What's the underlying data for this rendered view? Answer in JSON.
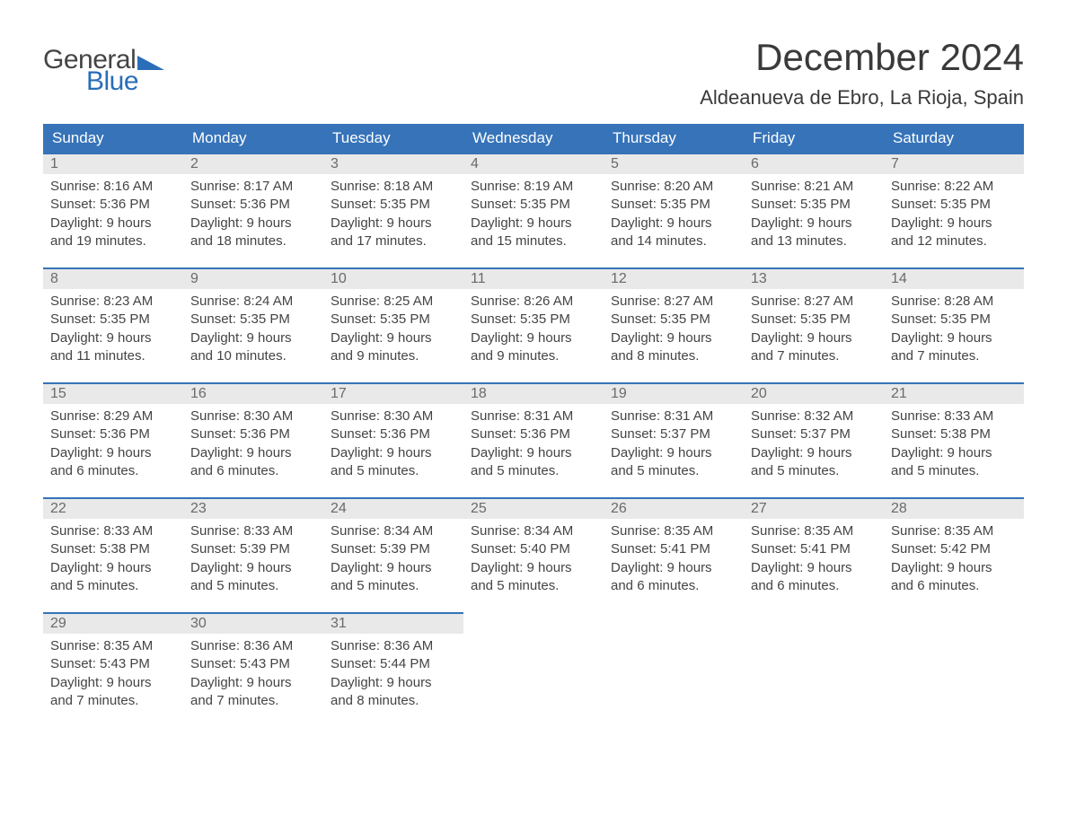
{
  "logo": {
    "word1": "General",
    "word2": "Blue",
    "text_color": "#444444",
    "accent_color": "#2a6db8"
  },
  "title": "December 2024",
  "location": "Aldeanueva de Ebro, La Rioja, Spain",
  "colors": {
    "header_bg": "#3673b9",
    "header_text": "#ffffff",
    "daynum_bg": "#e9e9e9",
    "daynum_border": "#3673b9",
    "body_text": "#444444",
    "page_bg": "#ffffff"
  },
  "weekdays": [
    "Sunday",
    "Monday",
    "Tuesday",
    "Wednesday",
    "Thursday",
    "Friday",
    "Saturday"
  ],
  "days": [
    {
      "n": 1,
      "sunrise": "Sunrise: 8:16 AM",
      "sunset": "Sunset: 5:36 PM",
      "d1": "Daylight: 9 hours",
      "d2": "and 19 minutes."
    },
    {
      "n": 2,
      "sunrise": "Sunrise: 8:17 AM",
      "sunset": "Sunset: 5:36 PM",
      "d1": "Daylight: 9 hours",
      "d2": "and 18 minutes."
    },
    {
      "n": 3,
      "sunrise": "Sunrise: 8:18 AM",
      "sunset": "Sunset: 5:35 PM",
      "d1": "Daylight: 9 hours",
      "d2": "and 17 minutes."
    },
    {
      "n": 4,
      "sunrise": "Sunrise: 8:19 AM",
      "sunset": "Sunset: 5:35 PM",
      "d1": "Daylight: 9 hours",
      "d2": "and 15 minutes."
    },
    {
      "n": 5,
      "sunrise": "Sunrise: 8:20 AM",
      "sunset": "Sunset: 5:35 PM",
      "d1": "Daylight: 9 hours",
      "d2": "and 14 minutes."
    },
    {
      "n": 6,
      "sunrise": "Sunrise: 8:21 AM",
      "sunset": "Sunset: 5:35 PM",
      "d1": "Daylight: 9 hours",
      "d2": "and 13 minutes."
    },
    {
      "n": 7,
      "sunrise": "Sunrise: 8:22 AM",
      "sunset": "Sunset: 5:35 PM",
      "d1": "Daylight: 9 hours",
      "d2": "and 12 minutes."
    },
    {
      "n": 8,
      "sunrise": "Sunrise: 8:23 AM",
      "sunset": "Sunset: 5:35 PM",
      "d1": "Daylight: 9 hours",
      "d2": "and 11 minutes."
    },
    {
      "n": 9,
      "sunrise": "Sunrise: 8:24 AM",
      "sunset": "Sunset: 5:35 PM",
      "d1": "Daylight: 9 hours",
      "d2": "and 10 minutes."
    },
    {
      "n": 10,
      "sunrise": "Sunrise: 8:25 AM",
      "sunset": "Sunset: 5:35 PM",
      "d1": "Daylight: 9 hours",
      "d2": "and 9 minutes."
    },
    {
      "n": 11,
      "sunrise": "Sunrise: 8:26 AM",
      "sunset": "Sunset: 5:35 PM",
      "d1": "Daylight: 9 hours",
      "d2": "and 9 minutes."
    },
    {
      "n": 12,
      "sunrise": "Sunrise: 8:27 AM",
      "sunset": "Sunset: 5:35 PM",
      "d1": "Daylight: 9 hours",
      "d2": "and 8 minutes."
    },
    {
      "n": 13,
      "sunrise": "Sunrise: 8:27 AM",
      "sunset": "Sunset: 5:35 PM",
      "d1": "Daylight: 9 hours",
      "d2": "and 7 minutes."
    },
    {
      "n": 14,
      "sunrise": "Sunrise: 8:28 AM",
      "sunset": "Sunset: 5:35 PM",
      "d1": "Daylight: 9 hours",
      "d2": "and 7 minutes."
    },
    {
      "n": 15,
      "sunrise": "Sunrise: 8:29 AM",
      "sunset": "Sunset: 5:36 PM",
      "d1": "Daylight: 9 hours",
      "d2": "and 6 minutes."
    },
    {
      "n": 16,
      "sunrise": "Sunrise: 8:30 AM",
      "sunset": "Sunset: 5:36 PM",
      "d1": "Daylight: 9 hours",
      "d2": "and 6 minutes."
    },
    {
      "n": 17,
      "sunrise": "Sunrise: 8:30 AM",
      "sunset": "Sunset: 5:36 PM",
      "d1": "Daylight: 9 hours",
      "d2": "and 5 minutes."
    },
    {
      "n": 18,
      "sunrise": "Sunrise: 8:31 AM",
      "sunset": "Sunset: 5:36 PM",
      "d1": "Daylight: 9 hours",
      "d2": "and 5 minutes."
    },
    {
      "n": 19,
      "sunrise": "Sunrise: 8:31 AM",
      "sunset": "Sunset: 5:37 PM",
      "d1": "Daylight: 9 hours",
      "d2": "and 5 minutes."
    },
    {
      "n": 20,
      "sunrise": "Sunrise: 8:32 AM",
      "sunset": "Sunset: 5:37 PM",
      "d1": "Daylight: 9 hours",
      "d2": "and 5 minutes."
    },
    {
      "n": 21,
      "sunrise": "Sunrise: 8:33 AM",
      "sunset": "Sunset: 5:38 PM",
      "d1": "Daylight: 9 hours",
      "d2": "and 5 minutes."
    },
    {
      "n": 22,
      "sunrise": "Sunrise: 8:33 AM",
      "sunset": "Sunset: 5:38 PM",
      "d1": "Daylight: 9 hours",
      "d2": "and 5 minutes."
    },
    {
      "n": 23,
      "sunrise": "Sunrise: 8:33 AM",
      "sunset": "Sunset: 5:39 PM",
      "d1": "Daylight: 9 hours",
      "d2": "and 5 minutes."
    },
    {
      "n": 24,
      "sunrise": "Sunrise: 8:34 AM",
      "sunset": "Sunset: 5:39 PM",
      "d1": "Daylight: 9 hours",
      "d2": "and 5 minutes."
    },
    {
      "n": 25,
      "sunrise": "Sunrise: 8:34 AM",
      "sunset": "Sunset: 5:40 PM",
      "d1": "Daylight: 9 hours",
      "d2": "and 5 minutes."
    },
    {
      "n": 26,
      "sunrise": "Sunrise: 8:35 AM",
      "sunset": "Sunset: 5:41 PM",
      "d1": "Daylight: 9 hours",
      "d2": "and 6 minutes."
    },
    {
      "n": 27,
      "sunrise": "Sunrise: 8:35 AM",
      "sunset": "Sunset: 5:41 PM",
      "d1": "Daylight: 9 hours",
      "d2": "and 6 minutes."
    },
    {
      "n": 28,
      "sunrise": "Sunrise: 8:35 AM",
      "sunset": "Sunset: 5:42 PM",
      "d1": "Daylight: 9 hours",
      "d2": "and 6 minutes."
    },
    {
      "n": 29,
      "sunrise": "Sunrise: 8:35 AM",
      "sunset": "Sunset: 5:43 PM",
      "d1": "Daylight: 9 hours",
      "d2": "and 7 minutes."
    },
    {
      "n": 30,
      "sunrise": "Sunrise: 8:36 AM",
      "sunset": "Sunset: 5:43 PM",
      "d1": "Daylight: 9 hours",
      "d2": "and 7 minutes."
    },
    {
      "n": 31,
      "sunrise": "Sunrise: 8:36 AM",
      "sunset": "Sunset: 5:44 PM",
      "d1": "Daylight: 9 hours",
      "d2": "and 8 minutes."
    }
  ]
}
